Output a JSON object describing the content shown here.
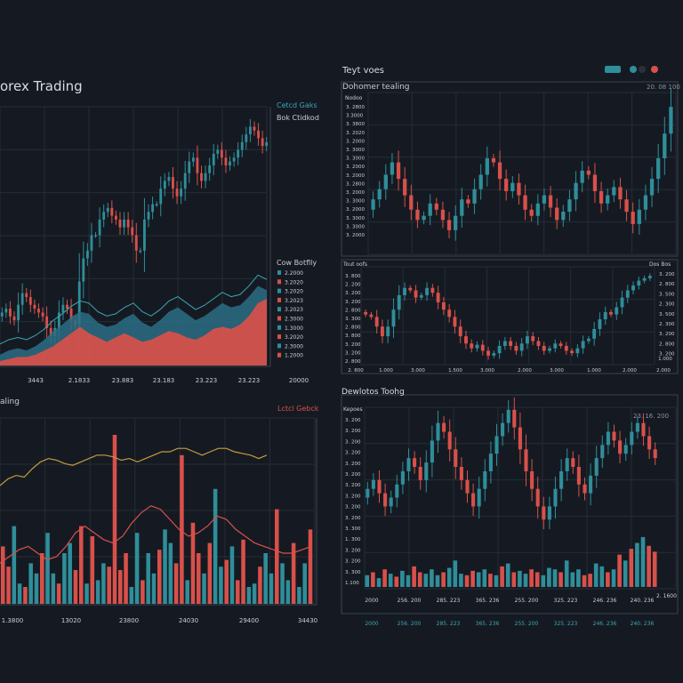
{
  "colors": {
    "background": "#151a22",
    "panel_border": "#39414d",
    "grid": "#252c36",
    "text": "#c8cdd3",
    "muted": "#8a919b",
    "bull": "#2f8e9a",
    "bear": "#d9504a",
    "amber": "#c69a3e",
    "line_blue": "#3aa7b5"
  },
  "header": {
    "title": "orex Trading"
  },
  "panels": {
    "main": {
      "legend": [
        "Cetcd Gaks",
        "Bok Ctidkod"
      ],
      "sub_title": "Cow Botflly",
      "sub_ticks": [
        "2.2000",
        "3.2020",
        "3.2020",
        "3.2023",
        "3.2023",
        "2.3000",
        "1.3000",
        "3.2020",
        "2.3000",
        "1.2000"
      ],
      "x_ticks": [
        "3443",
        "2.1833",
        "23.883",
        "23.183",
        "23.223",
        "23.223",
        "20000"
      ]
    },
    "volume": {
      "title": "aling",
      "legend": "Lctcl Gebck",
      "x_ticks": [
        "1.3800",
        "13020",
        "23800",
        "24030",
        "29400",
        "34430"
      ]
    },
    "top_right": {
      "title": "Teyt voes",
      "subtitle": "Dohomer tealing",
      "header_right": "20. 08 100",
      "y_header": "Nodoo",
      "y_ticks": [
        "3. 2800",
        "3.3000",
        "3. 3800",
        "3. 2020",
        "3. 2000",
        "3. 3000",
        "3. 3000",
        "3. 2000",
        "3. 2000",
        "3. 2800",
        "3. 2000",
        "3. 3000",
        "3. 2000",
        "3. 3000",
        "3. 3000",
        "3. 2000"
      ]
    },
    "mid_right": {
      "left_header": "Tout oofs",
      "right_header": "Dos Bos",
      "y_ticks_left": [
        "3. 800",
        "2. 200",
        "3. 200",
        "3. 200",
        "2. 800",
        "3. 300",
        "2. 800",
        "3. 800",
        "3. 200",
        "3. 200",
        "2. 800"
      ],
      "y_ticks_right": [
        "3. 200",
        "2. 800",
        "3. 500",
        "2. 300",
        "3. 500",
        "2. 300",
        "3. 200",
        "2. 800",
        "3. 200"
      ],
      "x_ticks": [
        "2. 800",
        "1.000",
        "3.000",
        "1.500",
        "3.000",
        "2.000",
        "3.000",
        "1.000",
        "2.000",
        "2.000",
        "1.000"
      ]
    },
    "bottom_right": {
      "title": "Dewlotos Toohg",
      "y_header": "Kepoes",
      "header_right": "23. 16. 200",
      "y_ticks": [
        "3. 200",
        "3. 200",
        "3. 200",
        "3. 200",
        "3. 200",
        "3. 200",
        "3. 200",
        "3. 200",
        "3. 200",
        "3. 200",
        "3. 300",
        "1. 300",
        "3. 200",
        "3. 200",
        "3. 300",
        "1.100"
      ],
      "x_ticks": [
        "2000",
        "256. 200",
        "285. 223",
        "365. 236",
        "255. 200",
        "325. 223",
        "246. 236",
        "240. 236"
      ],
      "right_tick": "2. 1600"
    }
  },
  "chart_data": [
    {
      "type": "candlestick",
      "title": "orex Trading",
      "series_legend": [
        "Cetcd Gaks",
        "Bok Ctidkod"
      ],
      "closes": [
        1.34,
        1.345,
        1.335,
        1.33,
        1.35,
        1.365,
        1.36,
        1.35,
        1.345,
        1.34,
        1.335,
        1.32,
        1.31,
        1.32,
        1.34,
        1.35,
        1.345,
        1.33,
        1.325,
        1.38,
        1.41,
        1.42,
        1.44,
        1.44,
        1.46,
        1.47,
        1.475,
        1.465,
        1.46,
        1.45,
        1.46,
        1.45,
        1.44,
        1.42,
        1.42,
        1.46,
        1.47,
        1.48,
        1.48,
        1.5,
        1.51,
        1.515,
        1.5,
        1.49,
        1.5,
        1.52,
        1.535,
        1.54,
        1.52,
        1.51,
        1.52,
        1.53,
        1.545,
        1.55,
        1.54,
        1.53,
        1.535,
        1.54,
        1.55,
        1.56,
        1.57,
        1.58,
        1.575,
        1.565,
        1.555,
        1.56
      ],
      "ylim": [
        1.29,
        1.6
      ]
    },
    {
      "type": "area",
      "title": "Cow Botflly",
      "x": [
        0,
        1,
        2,
        3,
        4,
        5,
        6,
        7,
        8,
        9,
        10,
        11,
        12,
        13,
        14,
        15,
        16,
        17,
        18,
        19,
        20,
        21,
        22,
        23,
        24,
        25,
        26,
        27,
        28,
        29,
        30
      ],
      "series": [
        {
          "values": [
            10,
            14,
            16,
            14,
            18,
            24,
            32,
            38,
            45,
            50,
            48,
            40,
            36,
            38,
            44,
            48,
            40,
            36,
            42,
            50,
            54,
            48,
            42,
            46,
            52,
            58,
            54,
            56,
            64,
            74,
            70
          ]
        },
        {
          "values": [
            4,
            6,
            8,
            8,
            10,
            14,
            18,
            24,
            30,
            36,
            30,
            26,
            22,
            26,
            30,
            26,
            22,
            24,
            28,
            32,
            30,
            26,
            24,
            28,
            34,
            36,
            34,
            38,
            46,
            58,
            62
          ]
        }
      ],
      "ylim": [
        0,
        100
      ]
    },
    {
      "type": "bar",
      "title": "aling",
      "legend": "Lctcl Gebck",
      "categories_count": 56,
      "values": [
        34,
        22,
        46,
        12,
        10,
        24,
        18,
        30,
        42,
        18,
        12,
        30,
        36,
        20,
        46,
        12,
        40,
        14,
        24,
        22,
        100,
        20,
        30,
        10,
        42,
        14,
        30,
        18,
        32,
        44,
        36,
        24,
        88,
        14,
        48,
        30,
        18,
        36,
        68,
        22,
        26,
        34,
        14,
        38,
        10,
        12,
        22,
        30,
        18,
        56,
        24,
        14,
        36,
        10,
        24,
        44
      ],
      "line_amber": [
        70,
        74,
        76,
        75,
        80,
        84,
        86,
        85,
        83,
        82,
        84,
        86,
        88,
        88,
        87,
        85,
        86,
        84,
        86,
        88,
        90,
        90,
        92,
        92,
        90,
        88,
        90,
        92,
        92,
        90,
        89,
        88,
        86,
        88
      ],
      "line_red": [
        24,
        28,
        32,
        34,
        30,
        26,
        28,
        34,
        42,
        46,
        42,
        38,
        36,
        40,
        48,
        54,
        58,
        56,
        50,
        44,
        40,
        42,
        46,
        52,
        50,
        44,
        40,
        36,
        34,
        32,
        30,
        30,
        32,
        34
      ],
      "ylim": [
        0,
        110
      ]
    },
    {
      "type": "candlestick",
      "title": "Teyt voes",
      "subtitle": "Dohomer tealing",
      "closes": [
        3.1,
        3.15,
        3.22,
        3.28,
        3.2,
        3.12,
        3.05,
        3.0,
        3.02,
        3.08,
        3.05,
        3.0,
        2.95,
        3.02,
        3.1,
        3.08,
        3.15,
        3.22,
        3.3,
        3.28,
        3.2,
        3.14,
        3.18,
        3.12,
        3.05,
        3.02,
        3.08,
        3.12,
        3.06,
        3.0,
        3.04,
        3.1,
        3.18,
        3.24,
        3.22,
        3.14,
        3.08,
        3.12,
        3.16,
        3.1,
        3.04,
        2.98,
        3.05,
        3.12,
        3.2,
        3.3,
        3.42,
        3.55
      ],
      "ylim": [
        2.85,
        3.62
      ]
    },
    {
      "type": "candlestick",
      "title": "Tout oofs",
      "closes": [
        3.2,
        3.18,
        3.1,
        3.02,
        3.1,
        3.24,
        3.36,
        3.42,
        3.4,
        3.34,
        3.36,
        3.42,
        3.38,
        3.3,
        3.24,
        3.18,
        3.1,
        3.02,
        2.96,
        2.92,
        2.95,
        2.9,
        2.86,
        2.88,
        2.94,
        2.98,
        2.94,
        2.9,
        2.96,
        3.02,
        2.98,
        2.94,
        2.9,
        2.92,
        2.96,
        2.94,
        2.9,
        2.88,
        2.92,
        2.98,
        3.0,
        3.08,
        3.16,
        3.22,
        3.2,
        3.26,
        3.34,
        3.4,
        3.44,
        3.48,
        3.5,
        3.52
      ],
      "ylim": [
        2.8,
        3.58
      ]
    },
    {
      "type": "candlestick",
      "title": "Dewlotos Toohg",
      "closes": [
        3.1,
        3.14,
        3.08,
        3.02,
        3.06,
        3.12,
        3.18,
        3.24,
        3.2,
        3.14,
        3.22,
        3.32,
        3.4,
        3.36,
        3.28,
        3.2,
        3.14,
        3.08,
        3.02,
        3.1,
        3.18,
        3.26,
        3.34,
        3.4,
        3.46,
        3.38,
        3.28,
        3.18,
        3.1,
        3.02,
        2.96,
        3.02,
        3.1,
        3.18,
        3.24,
        3.2,
        3.12,
        3.08,
        3.16,
        3.24,
        3.3,
        3.36,
        3.32,
        3.26,
        3.3,
        3.36,
        3.4,
        3.34,
        3.28,
        3.24
      ],
      "volume": [
        8,
        10,
        6,
        12,
        9,
        7,
        11,
        8,
        14,
        10,
        9,
        12,
        8,
        10,
        13,
        18,
        9,
        8,
        11,
        10,
        12,
        9,
        8,
        14,
        16,
        10,
        11,
        9,
        12,
        10,
        8,
        13,
        12,
        10,
        18,
        10,
        12,
        8,
        9,
        16,
        14,
        10,
        12,
        22,
        18,
        26,
        30,
        34,
        28,
        24
      ],
      "ylim": [
        2.88,
        3.52
      ]
    }
  ]
}
